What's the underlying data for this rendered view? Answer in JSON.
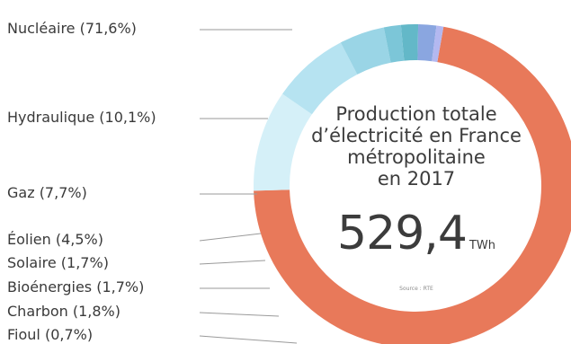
{
  "chart_data": {
    "type": "donut",
    "title_lines": [
      "Production totale",
      "d’électricité en France",
      "métropolitaine",
      "en 2017"
    ],
    "total_value": "529,4",
    "total_unit": "TWh",
    "source": "Source : RTE",
    "slices": [
      {
        "label": "Nucléaire (71,6%)",
        "value": 71.6,
        "color": "#e8795a"
      },
      {
        "label": "Hydraulique (10,1%)",
        "value": 10.1,
        "color": "#d5f0f8"
      },
      {
        "label": "Gaz (7,7%)",
        "value": 7.7,
        "color": "#b6e3f1"
      },
      {
        "label": "Éolien (4,5%)",
        "value": 4.5,
        "color": "#9ad5e6"
      },
      {
        "label": "Solaire (1,7%)",
        "value": 1.7,
        "color": "#7cc6d8"
      },
      {
        "label": "Bioénergies (1,7%)",
        "value": 1.7,
        "color": "#63b8c8"
      },
      {
        "label": "Charbon (1,8%)",
        "value": 1.8,
        "color": "#8aa6e0"
      },
      {
        "label": "Fioul (0,7%)",
        "value": 0.7,
        "color": "#b3b8f0"
      }
    ]
  }
}
